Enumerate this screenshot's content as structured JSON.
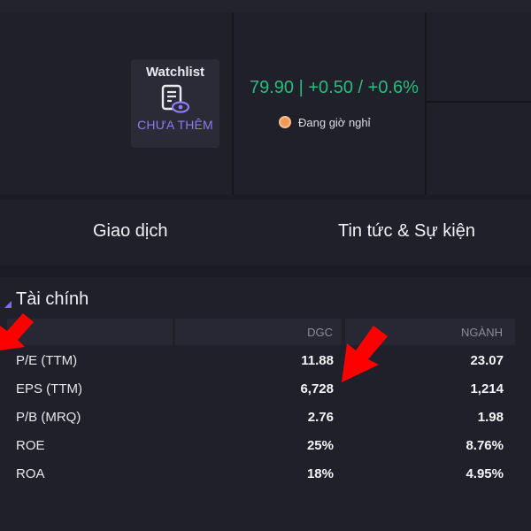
{
  "info": {
    "watchlist": {
      "title": "Watchlist",
      "add_label": "CHƯA THÊM",
      "icon": "watchlist-eye-icon"
    },
    "price_line": "79.90 | +0.50 / +0.6%",
    "market_status": "Đang giờ nghỉ",
    "colors": {
      "price_up": "#2dbb7d",
      "accent": "#8d7cf2",
      "status_dot": "#f29a55"
    }
  },
  "tabs": [
    {
      "label": "Giao dịch"
    },
    {
      "label": "Tin tức & Sự kiện"
    }
  ],
  "finance": {
    "title": "Tài chính",
    "columns": [
      "DGC",
      "NGÀNH"
    ],
    "rows": [
      {
        "label": "P/E (TTM)",
        "dgc": "11.88",
        "nganh": "23.07"
      },
      {
        "label": "EPS (TTM)",
        "dgc": "6,728",
        "nganh": "1,214"
      },
      {
        "label": "P/B (MRQ)",
        "dgc": "2.76",
        "nganh": "1.98"
      },
      {
        "label": "ROE",
        "dgc": "25%",
        "nganh": "8.76%"
      },
      {
        "label": "ROA",
        "dgc": "18%",
        "nganh": "4.95%"
      }
    ]
  },
  "annotations": {
    "arrow_color": "#ff0000"
  }
}
